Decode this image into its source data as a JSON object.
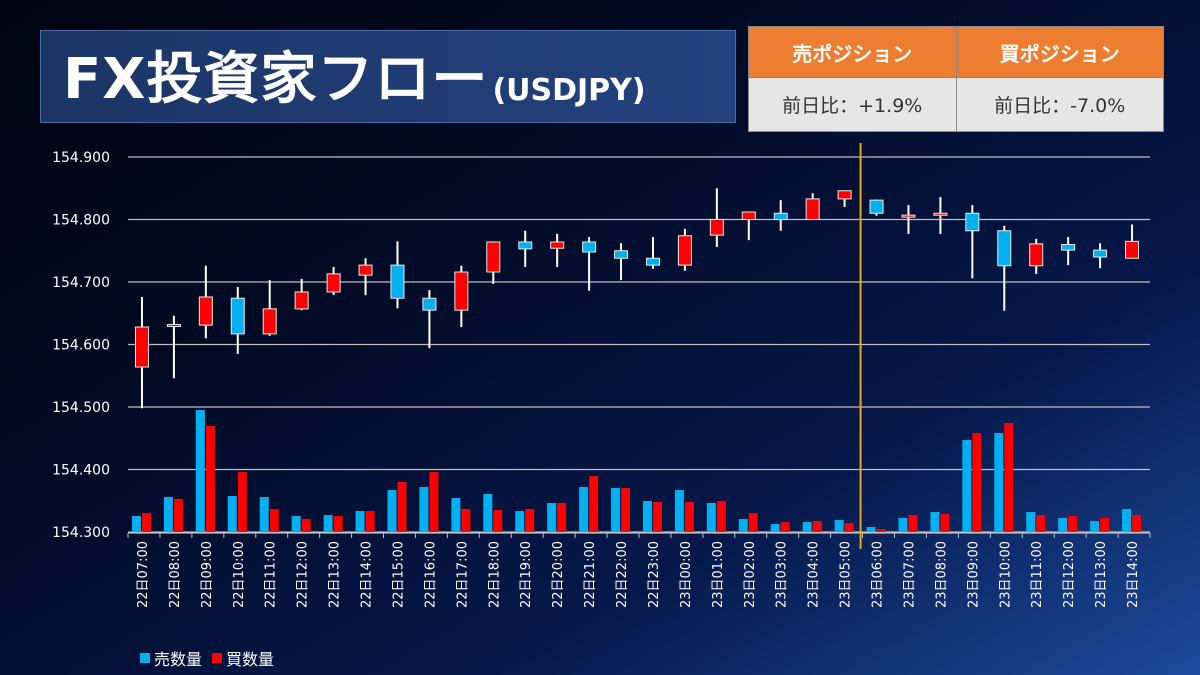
{
  "header": {
    "title": "FX投資家フロー",
    "subtitle": "(USDJPY)"
  },
  "positions": {
    "sell": {
      "label": "売ポジション",
      "change": "前日比：+1.9%"
    },
    "buy": {
      "label": "買ポジション",
      "change": "前日比：-7.0%"
    }
  },
  "colors": {
    "up": "#ff0000",
    "down": "#00b0f0",
    "sell": "#00b0f0",
    "buy": "#ff0000",
    "marker": "#e6a817",
    "header": "#ed7d31"
  },
  "legend": {
    "sell": "売数量",
    "buy": "買数量"
  },
  "chart_data": {
    "type": "candlestick+bar",
    "ylim": [
      154.3,
      154.9
    ],
    "yticks": [
      "154.300",
      "154.400",
      "154.500",
      "154.600",
      "154.700",
      "154.800",
      "154.900"
    ],
    "grid": true,
    "legend_position": "bottom-left",
    "marker_between": [
      "23日05:00",
      "23日06:00"
    ],
    "categories": [
      "22日07:00",
      "22日08:00",
      "22日09:00",
      "22日10:00",
      "22日11:00",
      "22日12:00",
      "22日13:00",
      "22日14:00",
      "22日15:00",
      "22日16:00",
      "22日17:00",
      "22日18:00",
      "22日19:00",
      "22日20:00",
      "22日21:00",
      "22日22:00",
      "22日23:00",
      "23日00:00",
      "23日01:00",
      "23日02:00",
      "23日03:00",
      "23日04:00",
      "23日05:00",
      "23日06:00",
      "23日07:00",
      "23日08:00",
      "23日09:00",
      "23日10:00",
      "23日11:00",
      "23日12:00",
      "23日13:00",
      "23日14:00"
    ],
    "ohlc": [
      [
        154.564,
        154.676,
        154.498,
        154.628
      ],
      [
        154.63,
        154.646,
        154.546,
        154.632
      ],
      [
        154.631,
        154.726,
        154.61,
        154.676
      ],
      [
        154.674,
        154.692,
        154.585,
        154.617
      ],
      [
        154.617,
        154.703,
        154.614,
        154.657
      ],
      [
        154.657,
        154.705,
        154.655,
        154.684
      ],
      [
        154.684,
        154.724,
        154.679,
        154.713
      ],
      [
        154.711,
        154.738,
        154.679,
        154.727
      ],
      [
        154.727,
        154.765,
        154.658,
        154.674
      ],
      [
        154.674,
        154.687,
        154.594,
        154.655
      ],
      [
        154.655,
        154.726,
        154.628,
        154.716
      ],
      [
        154.716,
        154.765,
        154.697,
        154.764
      ],
      [
        154.764,
        154.782,
        154.724,
        154.753
      ],
      [
        154.754,
        154.777,
        154.724,
        154.764
      ],
      [
        154.764,
        154.772,
        154.686,
        154.748
      ],
      [
        154.75,
        154.762,
        154.703,
        154.738
      ],
      [
        154.738,
        154.772,
        154.721,
        154.727
      ],
      [
        154.727,
        154.785,
        154.718,
        154.774
      ],
      [
        154.775,
        154.85,
        154.756,
        154.8
      ],
      [
        154.8,
        154.812,
        154.767,
        154.812
      ],
      [
        154.81,
        154.831,
        154.782,
        154.8
      ],
      [
        154.8,
        154.842,
        154.8,
        154.833
      ],
      [
        154.833,
        154.846,
        154.82,
        154.846
      ],
      [
        154.831,
        154.832,
        154.806,
        154.81
      ],
      [
        154.805,
        154.823,
        154.777,
        154.807
      ],
      [
        154.808,
        154.836,
        154.777,
        154.81
      ],
      [
        154.81,
        154.823,
        154.706,
        154.782
      ],
      [
        154.782,
        154.79,
        154.654,
        154.726
      ],
      [
        154.726,
        154.769,
        154.713,
        154.761
      ],
      [
        154.76,
        154.772,
        154.727,
        154.751
      ],
      [
        154.751,
        154.762,
        154.722,
        154.74
      ],
      [
        154.738,
        154.792,
        154.738,
        154.765
      ]
    ],
    "volume_sell": [
      16,
      35,
      122,
      36,
      35,
      16,
      17,
      21,
      42,
      45,
      34,
      38,
      21,
      29,
      45,
      44,
      31,
      42,
      29,
      13,
      8,
      10,
      12,
      5,
      14,
      20,
      92,
      99,
      20,
      14,
      11,
      23
    ],
    "volume_buy": [
      19,
      33,
      106,
      60,
      23,
      13,
      16,
      21,
      50,
      60,
      23,
      22,
      23,
      29,
      56,
      44,
      30,
      30,
      31,
      19,
      10,
      11,
      9,
      3,
      17,
      18,
      99,
      109,
      17,
      16,
      14,
      17
    ]
  }
}
